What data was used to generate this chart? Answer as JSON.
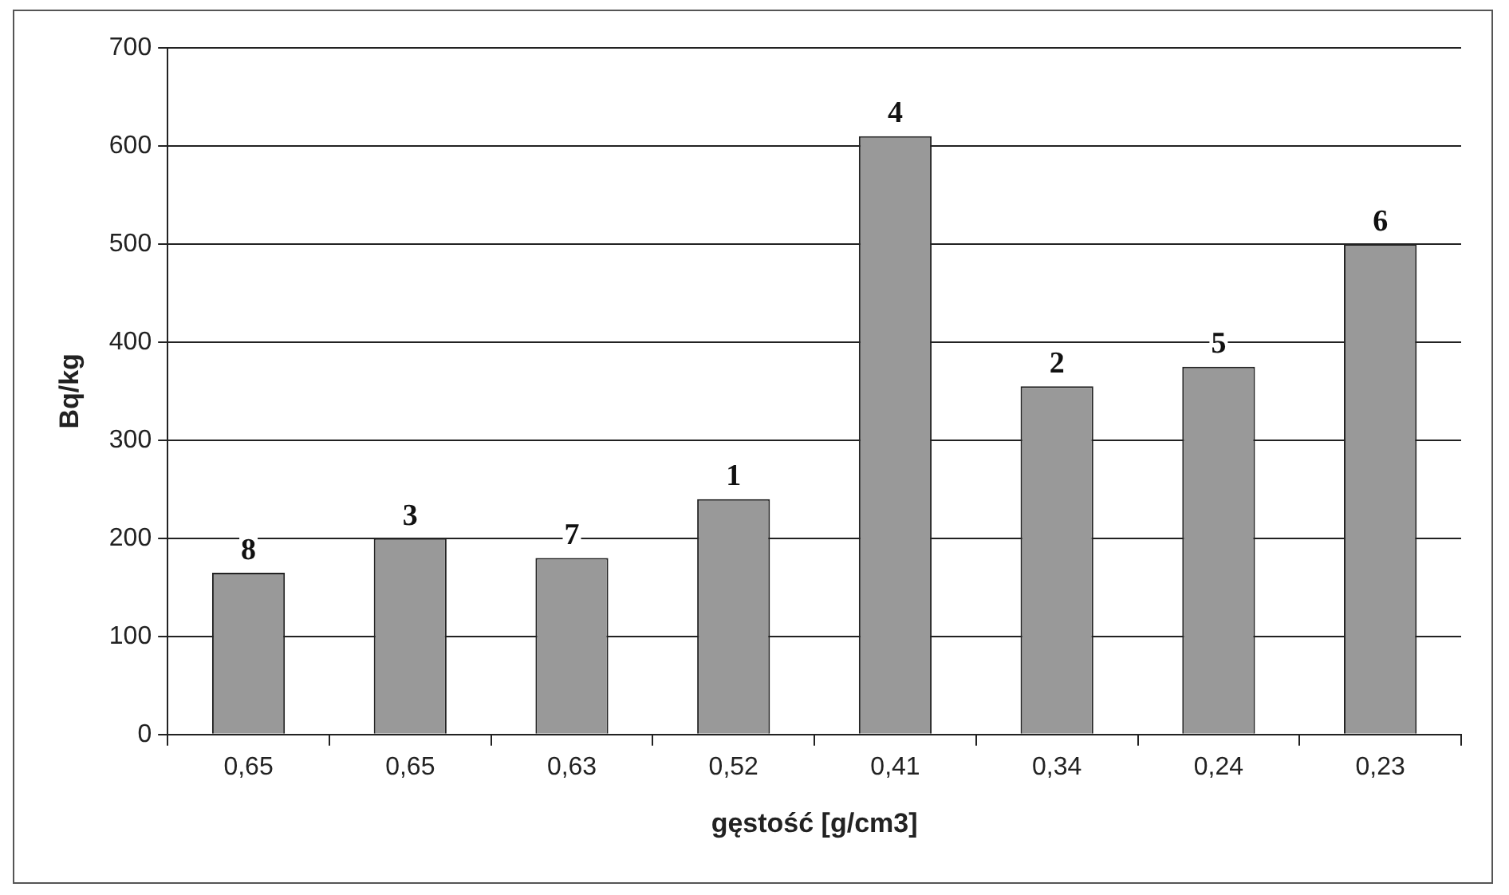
{
  "chart_data": {
    "type": "bar",
    "xlabel": "gęstość [g/cm3]",
    "ylabel": "Bq/kg",
    "categories": [
      "0,65",
      "0,65",
      "0,63",
      "0,52",
      "0,41",
      "0,34",
      "0,24",
      "0,23"
    ],
    "values": [
      165,
      200,
      180,
      240,
      610,
      355,
      375,
      500
    ],
    "annotations": [
      {
        "text": "8",
        "x": "0,65",
        "y": 165
      },
      {
        "text": "3",
        "y": 200
      },
      {
        "text": "7",
        "x": "0,63",
        "y": 180
      },
      {
        "text": "1",
        "x": "0,52",
        "y": 240
      },
      {
        "text": "4",
        "x": "0,41",
        "y": 610
      },
      {
        "text": "2",
        "x": "0,34",
        "y": 355
      },
      {
        "text": "5",
        "x": "0,24",
        "y": 375
      },
      {
        "text": "6",
        "x": "0,23",
        "y": 500
      }
    ],
    "color": "#999999",
    "ylim": [
      0,
      700
    ],
    "yticks": [
      0,
      100,
      200,
      300,
      400,
      500,
      600,
      700
    ],
    "grid": "y",
    "legend": false
  }
}
